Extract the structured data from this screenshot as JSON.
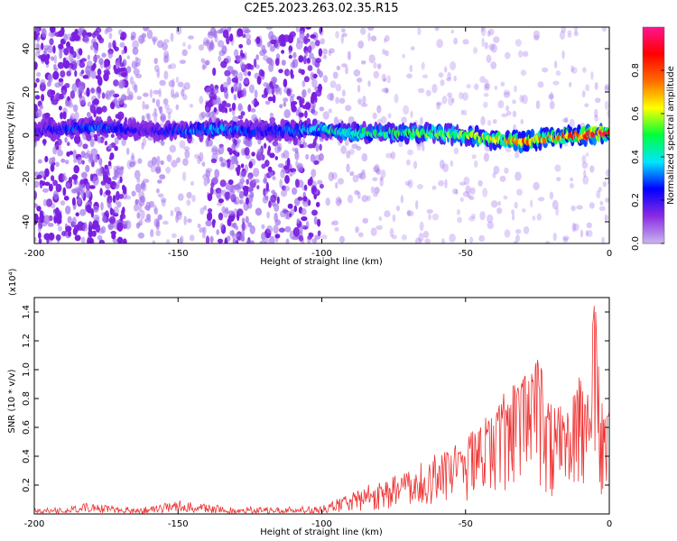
{
  "title": "C2E5.2023.263.02.35.R15",
  "chart_data": [
    {
      "type": "heatmap",
      "xlabel": "Height of straight line (km)",
      "ylabel": "Frequency (Hz)",
      "xlim": [
        -200,
        0
      ],
      "ylim": [
        -50,
        50
      ],
      "x_ticks": [
        -200,
        -150,
        -100,
        -50,
        0
      ],
      "y_ticks": [
        -40,
        -20,
        0,
        20,
        40
      ],
      "colorbar": {
        "label": "Normalized spectral amplitude",
        "range": [
          0.0,
          1.0
        ],
        "ticks": [
          0.0,
          0.2,
          0.4,
          0.6,
          0.8
        ],
        "colormap": [
          "#c8b4f0",
          "#8a2be2",
          "#0000ff",
          "#00e5ff",
          "#00ff3a",
          "#ffff00",
          "#ff6a00",
          "#ff0000",
          "#ff1493"
        ]
      },
      "ridge": {
        "description_values": "frequency centroid in Hz along height",
        "x": [
          -200,
          -180,
          -160,
          -145,
          -135,
          -120,
          -100,
          -90,
          -80,
          -70,
          -60,
          -50,
          -40,
          -30,
          -20,
          -10,
          0
        ],
        "y": [
          2,
          4,
          2,
          2,
          3,
          2,
          3,
          1,
          1,
          1,
          1,
          0,
          -2,
          -3,
          -1,
          0,
          1
        ],
        "peak_amplitude": [
          0.2,
          0.35,
          0.2,
          0.35,
          0.4,
          0.25,
          0.45,
          0.5,
          0.5,
          0.55,
          0.55,
          0.6,
          0.7,
          0.85,
          0.75,
          0.9,
          0.95
        ]
      },
      "scatter_bands": [
        {
          "x_range": [
            -200,
            -168
          ],
          "amplitude": 0.15
        },
        {
          "x_range": [
            -168,
            -155
          ],
          "amplitude": 0.08
        },
        {
          "x_range": [
            -155,
            -140
          ],
          "amplitude": 0.05
        },
        {
          "x_range": [
            -140,
            -100
          ],
          "amplitude": 0.14
        },
        {
          "x_range": [
            -100,
            -80
          ],
          "amplitude": 0.04
        },
        {
          "x_range": [
            -80,
            0
          ],
          "amplitude": 0.02
        }
      ]
    },
    {
      "type": "line",
      "xlabel": "Height of straight line (km)",
      "ylabel": "SNR (10 * v/v)",
      "y_multiplier": "(x10⁴)",
      "xlim": [
        -200,
        0
      ],
      "ylim": [
        0,
        1.5
      ],
      "x_ticks": [
        -200,
        -150,
        -100,
        -50,
        0
      ],
      "y_ticks": [
        0.2,
        0.4,
        0.6,
        0.8,
        1.0,
        1.2,
        1.4
      ],
      "color": "#ee3333",
      "series": [
        {
          "x": [
            -200,
            -190,
            -180,
            -170,
            -160,
            -150,
            -140,
            -130,
            -120,
            -110,
            -100,
            -95,
            -90,
            -85,
            -80,
            -75,
            -70,
            -65,
            -60,
            -55,
            -50,
            -45,
            -40,
            -35,
            -30,
            -25,
            -20,
            -15,
            -10,
            -8,
            -5,
            -3,
            0
          ],
          "y": [
            0.02,
            0.02,
            0.04,
            0.02,
            0.02,
            0.06,
            0.03,
            0.02,
            0.02,
            0.02,
            0.03,
            0.06,
            0.08,
            0.12,
            0.14,
            0.17,
            0.2,
            0.24,
            0.3,
            0.35,
            0.42,
            0.5,
            0.6,
            0.72,
            0.85,
            0.95,
            0.55,
            0.6,
            0.85,
            0.7,
            1.5,
            0.5,
            0.65
          ],
          "envelope_max": [
            0.04,
            0.05,
            0.08,
            0.05,
            0.05,
            0.1,
            0.07,
            0.05,
            0.05,
            0.05,
            0.06,
            0.1,
            0.14,
            0.2,
            0.22,
            0.26,
            0.3,
            0.36,
            0.42,
            0.45,
            0.55,
            0.62,
            0.75,
            0.88,
            0.95,
            1.1,
            0.75,
            0.82,
            1.02,
            0.85,
            1.5,
            0.8,
            0.72
          ]
        }
      ]
    }
  ]
}
